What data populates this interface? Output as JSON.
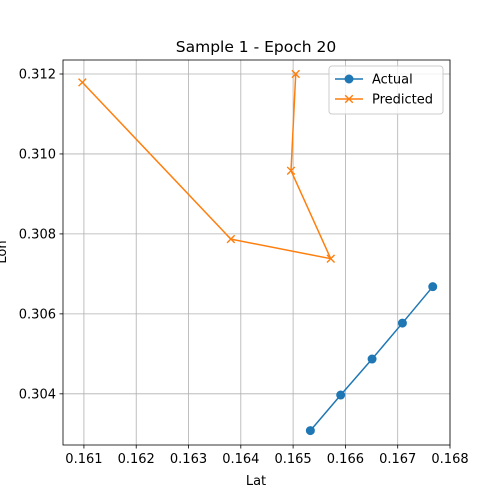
{
  "chart_data": {
    "type": "line",
    "title": "Sample 1 - Epoch 20",
    "xlabel": "Lat",
    "ylabel": "Lon",
    "xlim": [
      0.1606,
      0.168
    ],
    "ylim": [
      0.30272,
      0.31235
    ],
    "xticks": [
      0.161,
      0.162,
      0.163,
      0.164,
      0.165,
      0.166,
      0.167,
      0.168
    ],
    "yticks": [
      0.304,
      0.306,
      0.308,
      0.31,
      0.312
    ],
    "xtick_labels": [
      "0.161",
      "0.162",
      "0.163",
      "0.164",
      "0.165",
      "0.166",
      "0.167",
      "0.168"
    ],
    "ytick_labels": [
      "0.304",
      "0.306",
      "0.308",
      "0.310",
      "0.312"
    ],
    "grid": true,
    "legend_position": "top-right",
    "series": [
      {
        "name": "Actual",
        "color": "#1f77b4",
        "marker": "circle",
        "x": [
          0.16533,
          0.16591,
          0.16651,
          0.16709,
          0.16767
        ],
        "y": [
          0.30308,
          0.30397,
          0.30487,
          0.30577,
          0.30668
        ]
      },
      {
        "name": "Predicted",
        "color": "#ff7f0e",
        "marker": "x",
        "x": [
          0.16505,
          0.16496,
          0.16572,
          0.16381,
          0.16097
        ],
        "y": [
          0.312,
          0.30958,
          0.30738,
          0.30787,
          0.31179
        ]
      }
    ]
  }
}
